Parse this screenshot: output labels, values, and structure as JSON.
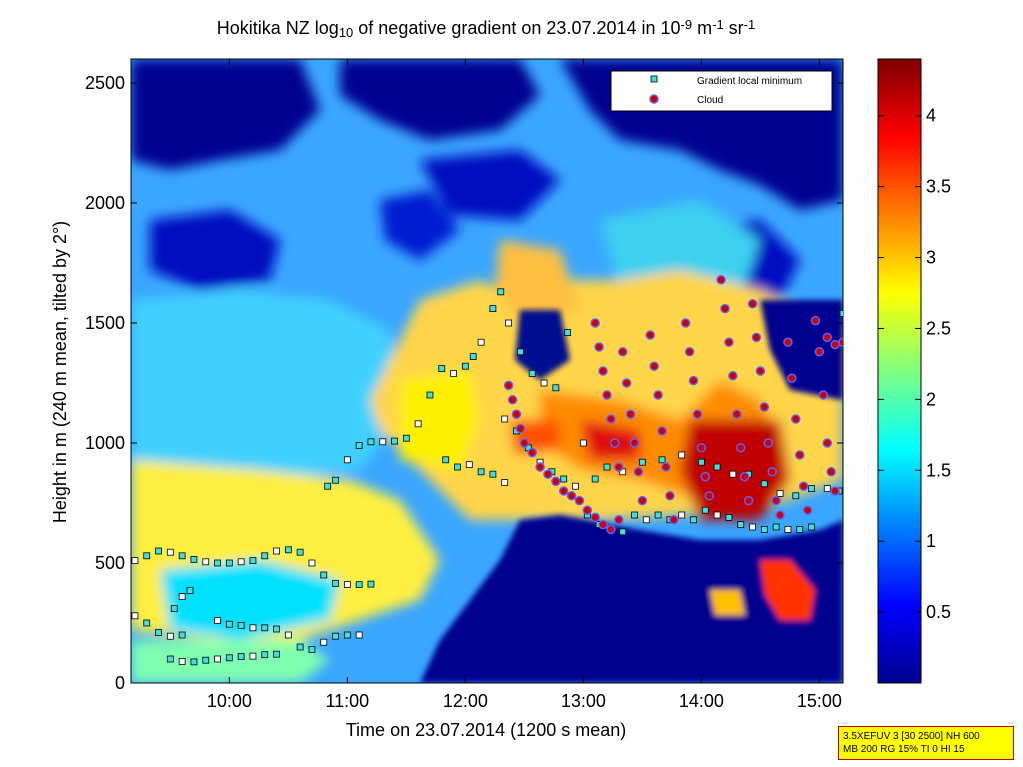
{
  "chart_data": {
    "type": "heatmap",
    "title_parts": [
      "Hokitika NZ log",
      "10",
      " of negative gradient on 23.07.2014 in 10",
      "-9",
      " m",
      "-1",
      " sr",
      "-1"
    ],
    "xlabel": "Time on 23.07.2014 (1200 s mean)",
    "ylabel": "Height in m (240 m mean, tilted by 2°)",
    "xlim": [
      "09:10",
      "15:12"
    ],
    "ylim": [
      0,
      2600
    ],
    "xticks": [
      "10:00",
      "11:00",
      "12:00",
      "13:00",
      "14:00",
      "15:00"
    ],
    "yticks": [
      0,
      500,
      1000,
      1500,
      2000,
      2500
    ],
    "colorbar": {
      "range": [
        0,
        4.4
      ],
      "ticks": [
        "0.5",
        "1",
        "1.5",
        "2",
        "2.5",
        "3",
        "3.5",
        "4"
      ],
      "colormap": "jet"
    },
    "legend": {
      "position": "top-right",
      "entries": [
        {
          "label": "Gradient local minimum",
          "marker": "square",
          "color": "#40e0e0"
        },
        {
          "label": "Cloud",
          "marker": "circle",
          "color": "#cc0000"
        }
      ]
    },
    "series": [
      {
        "name": "Gradient local minimum",
        "points": [
          [
            "09:12",
            510
          ],
          [
            "09:18",
            530
          ],
          [
            "09:24",
            550
          ],
          [
            "09:30",
            545
          ],
          [
            "09:36",
            530
          ],
          [
            "09:42",
            515
          ],
          [
            "09:48",
            505
          ],
          [
            "09:54",
            500
          ],
          [
            "10:00",
            500
          ],
          [
            "10:06",
            505
          ],
          [
            "10:12",
            510
          ],
          [
            "10:18",
            530
          ],
          [
            "10:24",
            550
          ],
          [
            "10:30",
            555
          ],
          [
            "10:36",
            545
          ],
          [
            "10:42",
            500
          ],
          [
            "10:48",
            450
          ],
          [
            "10:54",
            415
          ],
          [
            "11:00",
            410
          ],
          [
            "11:06",
            410
          ],
          [
            "11:12",
            412
          ],
          [
            "09:12",
            280
          ],
          [
            "09:18",
            250
          ],
          [
            "09:24",
            210
          ],
          [
            "09:30",
            195
          ],
          [
            "09:36",
            200
          ],
          [
            "09:32",
            310
          ],
          [
            "09:36",
            360
          ],
          [
            "09:40",
            385
          ],
          [
            "09:30",
            100
          ],
          [
            "09:36",
            90
          ],
          [
            "09:42",
            88
          ],
          [
            "09:48",
            95
          ],
          [
            "09:54",
            100
          ],
          [
            "10:00",
            105
          ],
          [
            "10:06",
            110
          ],
          [
            "10:12",
            112
          ],
          [
            "10:18",
            118
          ],
          [
            "10:24",
            120
          ],
          [
            "09:54",
            260
          ],
          [
            "10:00",
            245
          ],
          [
            "10:06",
            240
          ],
          [
            "10:12",
            230
          ],
          [
            "10:18",
            230
          ],
          [
            "10:24",
            225
          ],
          [
            "10:30",
            200
          ],
          [
            "10:36",
            150
          ],
          [
            "10:42",
            140
          ],
          [
            "10:48",
            170
          ],
          [
            "10:54",
            195
          ],
          [
            "11:00",
            200
          ],
          [
            "11:06",
            200
          ],
          [
            "10:50",
            820
          ],
          [
            "10:54",
            845
          ],
          [
            "11:00",
            930
          ],
          [
            "11:06",
            990
          ],
          [
            "11:12",
            1005
          ],
          [
            "11:18",
            1005
          ],
          [
            "11:24",
            1008
          ],
          [
            "11:30",
            1020
          ],
          [
            "11:36",
            1080
          ],
          [
            "11:42",
            1200
          ],
          [
            "11:48",
            1310
          ],
          [
            "11:54",
            1290
          ],
          [
            "12:00",
            1320
          ],
          [
            "12:04",
            1360
          ],
          [
            "12:08",
            1420
          ],
          [
            "11:50",
            930
          ],
          [
            "11:56",
            900
          ],
          [
            "12:02",
            910
          ],
          [
            "12:08",
            880
          ],
          [
            "12:14",
            870
          ],
          [
            "12:20",
            835
          ],
          [
            "12:14",
            1560
          ],
          [
            "12:18",
            1630
          ],
          [
            "12:22",
            1500
          ],
          [
            "12:28",
            1380
          ],
          [
            "12:34",
            1290
          ],
          [
            "12:40",
            1250
          ],
          [
            "12:46",
            1230
          ],
          [
            "12:52",
            1460
          ],
          [
            "13:00",
            1000
          ],
          [
            "13:06",
            850
          ],
          [
            "13:12",
            900
          ],
          [
            "13:20",
            880
          ],
          [
            "13:30",
            920
          ],
          [
            "13:40",
            930
          ],
          [
            "13:50",
            950
          ],
          [
            "14:00",
            920
          ],
          [
            "14:08",
            900
          ],
          [
            "14:16",
            870
          ],
          [
            "14:24",
            870
          ],
          [
            "14:32",
            830
          ],
          [
            "14:40",
            790
          ],
          [
            "14:48",
            780
          ],
          [
            "14:56",
            810
          ],
          [
            "15:04",
            810
          ],
          [
            "15:10",
            800
          ],
          [
            "15:12",
            1540
          ],
          [
            "12:20",
            1100
          ],
          [
            "12:26",
            1050
          ],
          [
            "12:32",
            980
          ],
          [
            "12:38",
            920
          ],
          [
            "12:44",
            880
          ],
          [
            "12:50",
            850
          ],
          [
            "12:56",
            820
          ],
          [
            "13:02",
            700
          ],
          [
            "13:08",
            660
          ],
          [
            "13:14",
            640
          ],
          [
            "13:20",
            630
          ],
          [
            "13:26",
            700
          ],
          [
            "13:32",
            680
          ],
          [
            "13:38",
            700
          ],
          [
            "13:44",
            680
          ],
          [
            "13:50",
            700
          ],
          [
            "13:56",
            680
          ],
          [
            "14:02",
            720
          ],
          [
            "14:08",
            700
          ],
          [
            "14:14",
            690
          ],
          [
            "14:20",
            660
          ],
          [
            "14:26",
            650
          ],
          [
            "14:32",
            640
          ],
          [
            "14:38",
            650
          ],
          [
            "14:44",
            640
          ],
          [
            "14:50",
            640
          ],
          [
            "14:56",
            650
          ]
        ]
      },
      {
        "name": "Cloud",
        "points": [
          [
            "12:22",
            1240
          ],
          [
            "12:24",
            1180
          ],
          [
            "12:26",
            1120
          ],
          [
            "12:28",
            1060
          ],
          [
            "12:30",
            1000
          ],
          [
            "12:34",
            960
          ],
          [
            "12:38",
            900
          ],
          [
            "12:42",
            870
          ],
          [
            "12:46",
            840
          ],
          [
            "12:50",
            800
          ],
          [
            "12:54",
            780
          ],
          [
            "12:58",
            760
          ],
          [
            "13:02",
            720
          ],
          [
            "13:06",
            690
          ],
          [
            "13:10",
            660
          ],
          [
            "13:14",
            640
          ],
          [
            "13:18",
            680
          ],
          [
            "13:06",
            1500
          ],
          [
            "13:08",
            1400
          ],
          [
            "13:10",
            1300
          ],
          [
            "13:12",
            1200
          ],
          [
            "13:14",
            1100
          ],
          [
            "13:16",
            1000
          ],
          [
            "13:18",
            900
          ],
          [
            "13:20",
            1380
          ],
          [
            "13:22",
            1250
          ],
          [
            "13:24",
            1120
          ],
          [
            "13:26",
            1000
          ],
          [
            "13:28",
            880
          ],
          [
            "13:30",
            760
          ],
          [
            "13:34",
            1450
          ],
          [
            "13:36",
            1320
          ],
          [
            "13:38",
            1200
          ],
          [
            "13:40",
            1050
          ],
          [
            "13:42",
            900
          ],
          [
            "13:44",
            780
          ],
          [
            "13:46",
            680
          ],
          [
            "13:52",
            1500
          ],
          [
            "13:54",
            1380
          ],
          [
            "13:56",
            1260
          ],
          [
            "13:58",
            1120
          ],
          [
            "14:00",
            980
          ],
          [
            "14:02",
            860
          ],
          [
            "14:04",
            780
          ],
          [
            "14:10",
            1680
          ],
          [
            "14:12",
            1560
          ],
          [
            "14:14",
            1420
          ],
          [
            "14:16",
            1280
          ],
          [
            "14:18",
            1120
          ],
          [
            "14:20",
            980
          ],
          [
            "14:22",
            860
          ],
          [
            "14:24",
            760
          ],
          [
            "14:26",
            1580
          ],
          [
            "14:28",
            1440
          ],
          [
            "14:30",
            1300
          ],
          [
            "14:32",
            1150
          ],
          [
            "14:34",
            1000
          ],
          [
            "14:36",
            880
          ],
          [
            "14:38",
            760
          ],
          [
            "14:40",
            700
          ],
          [
            "14:44",
            1420
          ],
          [
            "14:46",
            1270
          ],
          [
            "14:48",
            1100
          ],
          [
            "14:50",
            950
          ],
          [
            "14:52",
            820
          ],
          [
            "14:54",
            720
          ],
          [
            "14:58",
            1510
          ],
          [
            "15:00",
            1380
          ],
          [
            "15:02",
            1200
          ],
          [
            "15:04",
            1000
          ],
          [
            "15:06",
            880
          ],
          [
            "15:08",
            800
          ],
          [
            "15:04",
            1440
          ],
          [
            "15:08",
            1410
          ],
          [
            "15:12",
            1420
          ]
        ]
      }
    ]
  },
  "info_box": {
    "line1": "3.5XEFUV 3 [30 2500] NH 600",
    "line2": "MB 200 RG 15% TI 0 HI 15"
  }
}
